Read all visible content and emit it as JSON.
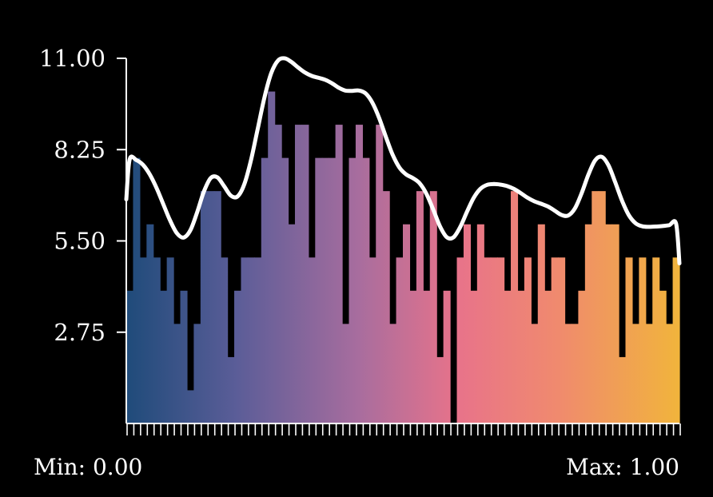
{
  "chart_data": {
    "type": "bar",
    "series_line": "smoothed",
    "bin_count": 82,
    "values": [
      4,
      8,
      5,
      6,
      5,
      4,
      5,
      3,
      4,
      1,
      3,
      7,
      7,
      7,
      5,
      2,
      4,
      5,
      5,
      5,
      8,
      10,
      9,
      8,
      6,
      9,
      9,
      5,
      8,
      8,
      8,
      9,
      3,
      8,
      9,
      8,
      5,
      9,
      7,
      3,
      5,
      6,
      4,
      7,
      4,
      7,
      2,
      4,
      0,
      5,
      6,
      4,
      6,
      5,
      5,
      5,
      4,
      7,
      4,
      5,
      3,
      6,
      4,
      5,
      5,
      3,
      3,
      4,
      6,
      7,
      7,
      6,
      6,
      2,
      5,
      3,
      5,
      3,
      5,
      4,
      3,
      5
    ],
    "ylim": [
      0,
      11
    ],
    "y_ticks": [
      "2.75",
      "5.50",
      "8.25",
      "11.00"
    ],
    "x_range": {
      "min_label": "Min: 0.00",
      "max_label": "Max: 1.00"
    },
    "colors": {
      "background": "#000000",
      "axis": "#ffffff",
      "curve": "#ffffff",
      "gradient": [
        "#1f4b7a",
        "#5b5d98",
        "#a86d9e",
        "#e8738a",
        "#f08a6e",
        "#f1b43c"
      ]
    }
  }
}
